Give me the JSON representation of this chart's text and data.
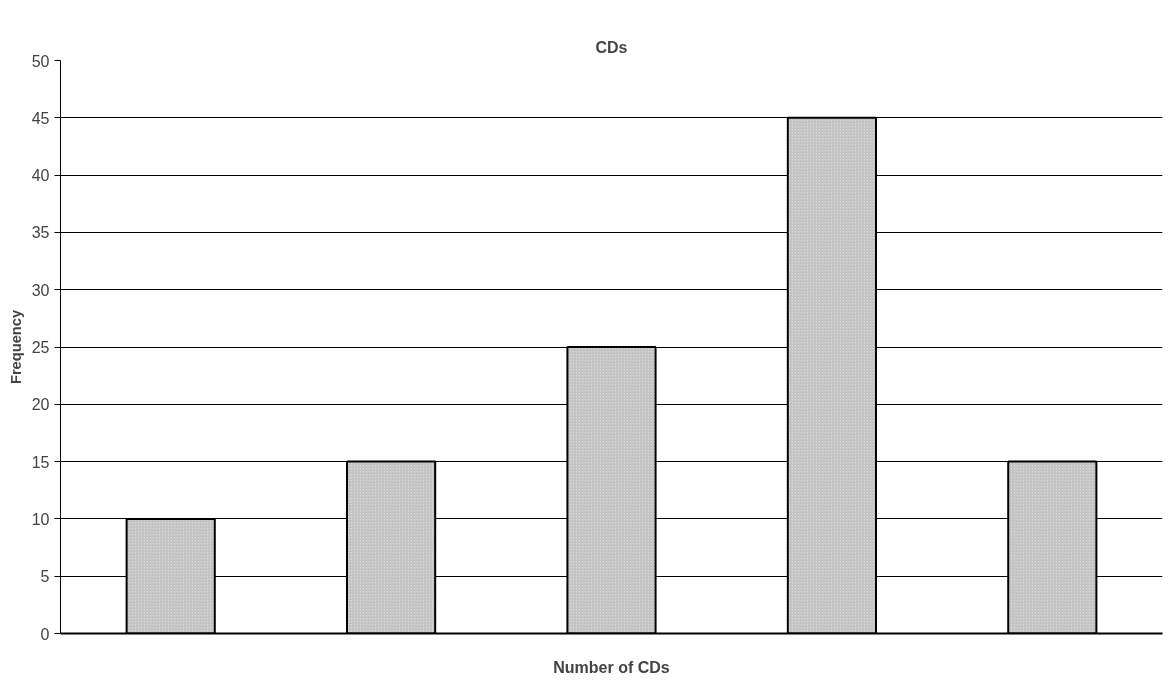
{
  "chart_data": {
    "type": "bar",
    "title": "CDs",
    "xlabel": "Number of CDs",
    "ylabel": "Frequency",
    "categories": [
      null,
      null,
      null,
      null,
      null
    ],
    "values": [
      10,
      15,
      25,
      45,
      15
    ],
    "color": "#d9d9d9",
    "ylim": [
      0,
      50
    ],
    "yticks": [
      0,
      5,
      10,
      15,
      20,
      25,
      30,
      35,
      40,
      45,
      50
    ],
    "grid": "y",
    "tick_labels": "y"
  }
}
